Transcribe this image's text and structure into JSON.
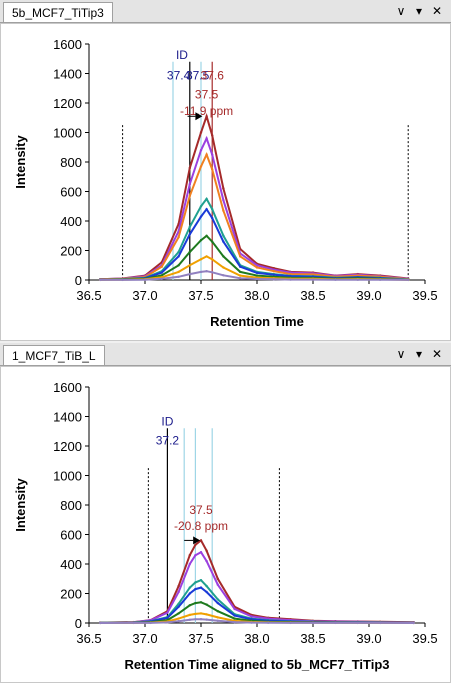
{
  "panes": [
    {
      "tab_label": "5b_MCF7_TiTip3",
      "xlabel": "Retention Time",
      "ylabel": "Intensity",
      "id_label": "ID",
      "id_value_labels": [
        "37.4",
        "37.5",
        "37.6"
      ],
      "peak_label_rt": "37.5",
      "peak_label_ppm": "-11.9 ppm"
    },
    {
      "tab_label": "1_MCF7_TiB_L",
      "xlabel": "Retention Time aligned to 5b_MCF7_TiTip3",
      "ylabel": "Intensity",
      "id_label": "ID",
      "id_value_labels": [
        "37.2"
      ],
      "peak_label_rt": "37.5",
      "peak_label_ppm": "-20.8 ppm"
    }
  ],
  "controls": {
    "pin_icon": "pin-icon",
    "dropdown_icon": "dropdown-arrow-icon",
    "close_icon": "close-icon"
  },
  "chart_data": [
    {
      "type": "line",
      "xlabel": "Retention Time",
      "ylabel": "Intensity",
      "xlim": [
        36.5,
        39.5
      ],
      "ylim": [
        0,
        1600
      ],
      "xticks": [
        36.5,
        37.0,
        37.5,
        38.0,
        38.5,
        39.0,
        39.5
      ],
      "yticks": [
        0,
        200,
        400,
        600,
        800,
        1000,
        1200,
        1400,
        1600
      ],
      "x": [
        36.6,
        36.8,
        37.0,
        37.15,
        37.3,
        37.4,
        37.5,
        37.55,
        37.6,
        37.7,
        37.85,
        38.0,
        38.15,
        38.3,
        38.5,
        38.7,
        38.9,
        39.1,
        39.35
      ],
      "series": [
        {
          "color": "#a52a2a",
          "values": [
            5,
            10,
            30,
            120,
            380,
            760,
            1000,
            1110,
            980,
            620,
            210,
            110,
            80,
            55,
            50,
            30,
            40,
            30,
            10
          ]
        },
        {
          "color": "#9b40e0",
          "values": [
            5,
            10,
            25,
            100,
            330,
            650,
            880,
            960,
            850,
            540,
            180,
            100,
            70,
            50,
            45,
            28,
            35,
            25,
            8
          ]
        },
        {
          "color": "#f08020",
          "values": [
            4,
            8,
            20,
            90,
            290,
            570,
            770,
            850,
            750,
            470,
            160,
            85,
            60,
            40,
            38,
            22,
            30,
            22,
            6
          ]
        },
        {
          "color": "#20a090",
          "values": [
            3,
            6,
            14,
            60,
            190,
            360,
            500,
            550,
            480,
            300,
            100,
            55,
            40,
            28,
            25,
            15,
            20,
            15,
            4
          ]
        },
        {
          "color": "#1a3ad8",
          "values": [
            3,
            5,
            12,
            50,
            160,
            310,
            430,
            480,
            420,
            260,
            90,
            48,
            35,
            25,
            22,
            12,
            18,
            12,
            3
          ]
        },
        {
          "color": "#1e7a1e",
          "values": [
            2,
            4,
            8,
            32,
            100,
            190,
            270,
            300,
            260,
            160,
            55,
            30,
            22,
            15,
            14,
            8,
            12,
            8,
            2
          ]
        },
        {
          "color": "#f0a000",
          "values": [
            1,
            2,
            5,
            18,
            55,
            100,
            140,
            160,
            140,
            85,
            30,
            16,
            12,
            8,
            8,
            4,
            6,
            4,
            1
          ]
        },
        {
          "color": "#9080c0",
          "values": [
            1,
            1,
            2,
            8,
            22,
            40,
            55,
            60,
            52,
            32,
            12,
            7,
            5,
            3,
            3,
            2,
            2,
            2,
            1
          ]
        }
      ],
      "dotted_boundaries_x": [
        36.8,
        39.35
      ],
      "id_lines_x": [
        37.25,
        37.4,
        37.5,
        37.6
      ],
      "id_lines_colors": [
        "#9ed6e6",
        "#000000",
        "#9ed6e6",
        "#a52a2a"
      ]
    },
    {
      "type": "line",
      "xlabel": "Retention Time aligned to 5b_MCF7_TiTip3",
      "ylabel": "Intensity",
      "xlim": [
        36.5,
        39.5
      ],
      "ylim": [
        0,
        1600
      ],
      "xticks": [
        36.5,
        37.0,
        37.5,
        38.0,
        38.5,
        39.0,
        39.5
      ],
      "yticks": [
        0,
        200,
        400,
        600,
        800,
        1000,
        1200,
        1400,
        1600
      ],
      "x": [
        36.6,
        36.9,
        37.05,
        37.2,
        37.3,
        37.4,
        37.45,
        37.5,
        37.55,
        37.65,
        37.8,
        37.95,
        38.1,
        38.3,
        38.5,
        38.7,
        38.9,
        39.1,
        39.4
      ],
      "series": [
        {
          "color": "#a52a2a",
          "values": [
            3,
            6,
            20,
            80,
            250,
            460,
            530,
            560,
            490,
            300,
            110,
            55,
            35,
            25,
            15,
            12,
            10,
            8,
            5
          ]
        },
        {
          "color": "#9b40e0",
          "values": [
            3,
            5,
            18,
            70,
            210,
            400,
            460,
            480,
            420,
            260,
            95,
            45,
            30,
            20,
            12,
            10,
            8,
            6,
            4
          ]
        },
        {
          "color": "#20a090",
          "values": [
            2,
            4,
            12,
            40,
            130,
            240,
            275,
            290,
            250,
            160,
            60,
            30,
            18,
            12,
            8,
            6,
            5,
            4,
            2
          ]
        },
        {
          "color": "#1a3ad8",
          "values": [
            2,
            3,
            10,
            35,
            110,
            200,
            230,
            240,
            210,
            135,
            50,
            25,
            15,
            10,
            7,
            5,
            4,
            3,
            2
          ]
        },
        {
          "color": "#1e7a1e",
          "values": [
            1,
            2,
            6,
            20,
            65,
            120,
            135,
            140,
            125,
            80,
            30,
            15,
            9,
            6,
            4,
            3,
            2,
            2,
            1
          ]
        },
        {
          "color": "#f0a000",
          "values": [
            1,
            1,
            3,
            10,
            30,
            55,
            62,
            65,
            58,
            38,
            14,
            7,
            4,
            3,
            2,
            2,
            1,
            1,
            1
          ]
        },
        {
          "color": "#9080c0",
          "values": [
            0,
            1,
            1,
            4,
            12,
            22,
            25,
            26,
            23,
            15,
            6,
            3,
            2,
            1,
            1,
            1,
            1,
            1,
            0
          ]
        }
      ],
      "dotted_boundaries_x": [
        37.03,
        38.2
      ],
      "id_lines_x": [
        37.2,
        37.35,
        37.45,
        37.6
      ],
      "id_lines_colors": [
        "#000000",
        "#9ed6e6",
        "#9ed6e6",
        "#9ed6e6"
      ]
    }
  ]
}
